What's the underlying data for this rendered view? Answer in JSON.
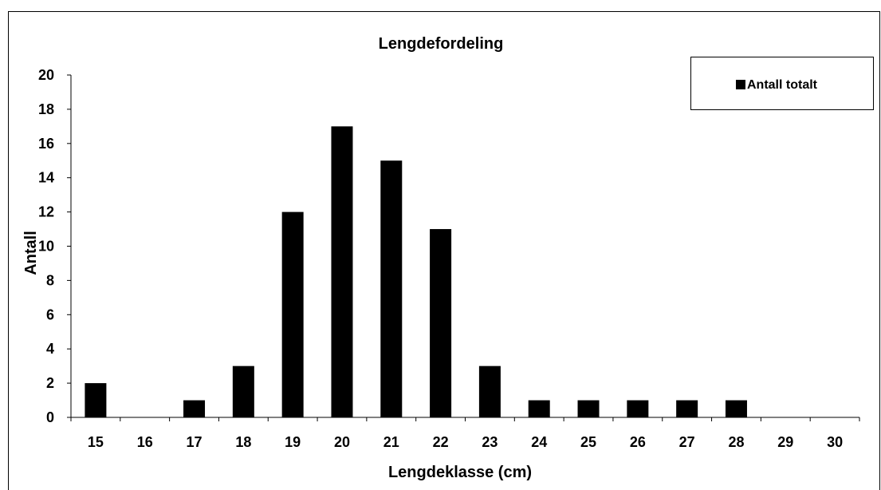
{
  "chart_data": {
    "type": "bar",
    "title": "Lengdefordeling",
    "xlabel": "Lengdeklasse (cm)",
    "ylabel": "Antall",
    "categories": [
      "15",
      "16",
      "17",
      "18",
      "19",
      "20",
      "21",
      "22",
      "23",
      "24",
      "25",
      "26",
      "27",
      "28",
      "29",
      "30"
    ],
    "series": [
      {
        "name": "Antall totalt",
        "values": [
          2,
          0,
          1,
          3,
          12,
          17,
          15,
          11,
          3,
          1,
          1,
          1,
          1,
          1,
          0,
          0
        ]
      }
    ],
    "ylim": [
      0,
      20
    ],
    "yticks": [
      0,
      2,
      4,
      6,
      8,
      10,
      12,
      14,
      16,
      18,
      20
    ],
    "grid": false,
    "legend_position": "top-right",
    "colors": {
      "bar": "#000000",
      "axis": "#000000"
    }
  }
}
